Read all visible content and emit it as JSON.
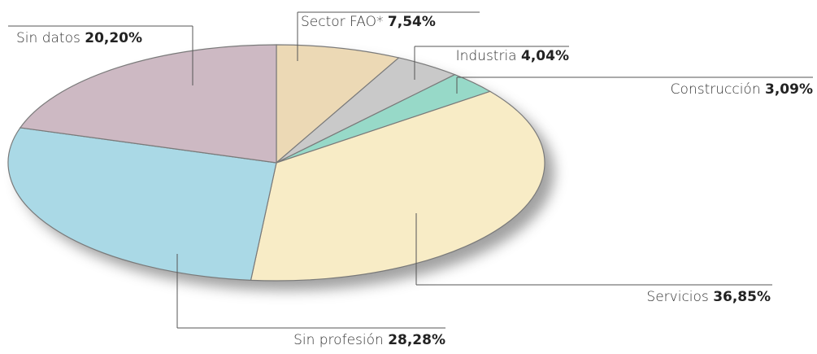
{
  "chart_data": {
    "type": "pie",
    "categories": [
      "Sector FAO*",
      "Industria",
      "Construcción",
      "Servicios",
      "Sin profesión",
      "Sin datos"
    ],
    "values": [
      7.54,
      4.04,
      3.09,
      36.85,
      28.28,
      20.2
    ],
    "value_labels": [
      "7,54%",
      "4,04%",
      "3,09%",
      "36,85%",
      "28,28%",
      "20,20%"
    ],
    "colors": [
      "#ecd9b5",
      "#c9c9c9",
      "#97d9c8",
      "#f8ecc6",
      "#aad9e6",
      "#cdb9c3"
    ]
  }
}
